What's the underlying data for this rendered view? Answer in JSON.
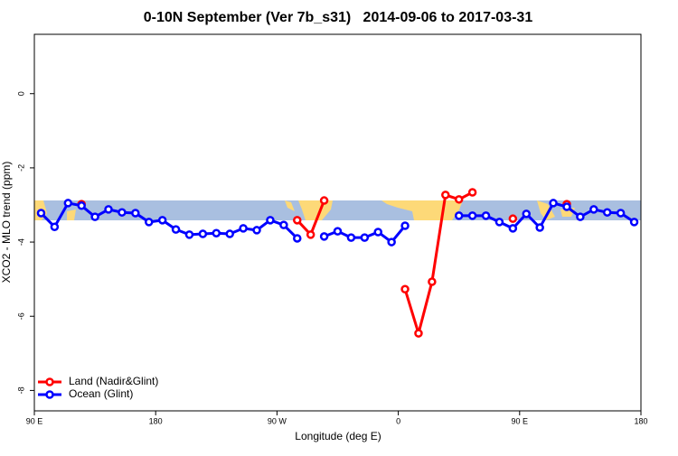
{
  "chart_data": {
    "type": "line",
    "title": "0-10N September (Ver 7b_s31)   2014-09-06 to 2017-03-31",
    "x_label": "Longitude (deg E)",
    "y_label": "XCO2 - MLO trend (ppm)",
    "x": [
      95,
      105,
      115,
      125,
      135,
      145,
      155,
      165,
      175,
      185,
      195,
      205,
      215,
      225,
      235,
      245,
      255,
      265,
      275,
      285,
      295,
      305,
      315,
      325,
      335,
      345,
      355,
      365,
      375,
      385,
      395,
      405,
      415,
      425,
      435,
      445,
      455,
      465,
      475,
      485,
      495,
      505,
      515,
      525,
      535
    ],
    "series": [
      {
        "name": "Land (Nadir&Glint)",
        "color": "#ff0000",
        "values": [
          null,
          null,
          null,
          -2.98,
          null,
          null,
          null,
          null,
          null,
          null,
          null,
          null,
          null,
          null,
          null,
          null,
          null,
          null,
          null,
          -3.41,
          -3.8,
          -2.88,
          null,
          null,
          null,
          null,
          null,
          -5.27,
          -6.46,
          -5.07,
          -2.73,
          -2.85,
          -2.66,
          null,
          null,
          -3.37,
          null,
          null,
          null,
          -2.98,
          null,
          null,
          null,
          null,
          null
        ]
      },
      {
        "name": "Ocean (Glint)",
        "color": "#0000ff",
        "values": [
          -3.22,
          -3.59,
          -2.95,
          -3.02,
          -3.32,
          -3.12,
          -3.2,
          -3.22,
          -3.46,
          -3.41,
          -3.66,
          -3.8,
          -3.78,
          -3.76,
          -3.78,
          -3.63,
          -3.68,
          -3.41,
          -3.54,
          -3.9,
          null,
          -3.85,
          -3.71,
          -3.88,
          -3.88,
          -3.73,
          -4.0,
          -3.56,
          null,
          null,
          null,
          -3.29,
          -3.29,
          -3.29,
          -3.46,
          -3.63,
          -3.24,
          -3.61,
          -2.95,
          -3.05,
          -3.32,
          -3.12,
          -3.2,
          -3.22,
          -3.46
        ]
      }
    ],
    "xlim": [
      90,
      540
    ],
    "xticks": [
      {
        "value": 90,
        "label": "90 E"
      },
      180,
      {
        "value": 270,
        "label": "90 W"
      },
      {
        "value": 360,
        "label": "0"
      },
      {
        "value": 450,
        "label": "90 E"
      },
      {
        "value": 540,
        "label": "180"
      }
    ],
    "ylim": [
      -8.55,
      1.6
    ],
    "yticks": [
      0,
      -2,
      -4,
      -6,
      -8
    ],
    "legend": "bottom-left"
  }
}
